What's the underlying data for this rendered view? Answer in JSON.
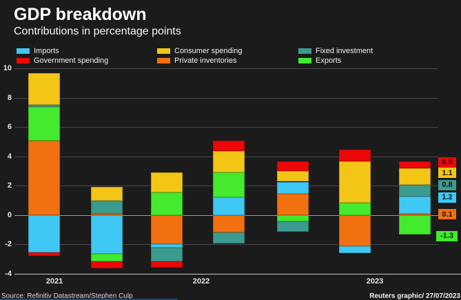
{
  "page": {
    "title": "GDP breakdown",
    "subtitle": "Contributions in percentage points",
    "source": "Source: Refinitiv Datastream/Stephen Culp",
    "credit": "Reuters graphic/ 27/07/2023"
  },
  "colors": {
    "background": "#1b1b1b",
    "imports": "#3fc8f4",
    "government": "#ed0707",
    "consumer": "#f3c515",
    "inventories": "#f1700f",
    "fixed": "#3b9b8e",
    "exports": "#43ea2d",
    "gridline": "#484848",
    "zero_line": "#9a9a9a",
    "bottom_line": "#c9c9c9"
  },
  "chart_data": {
    "type": "bar",
    "stacked": true,
    "title": "GDP breakdown",
    "subtitle": "Contributions in percentage points",
    "ylabel": "percentage points",
    "ylim": [
      -4,
      10
    ],
    "yticks": [
      10,
      8,
      6,
      4,
      2,
      0,
      -2,
      -4
    ],
    "grid": true,
    "legend_position": "top",
    "legend": [
      {
        "key": "imports",
        "label": "Imports"
      },
      {
        "key": "government",
        "label": "Government spending"
      },
      {
        "key": "consumer",
        "label": "Consumer spending"
      },
      {
        "key": "inventories",
        "label": "Private inventories"
      },
      {
        "key": "fixed",
        "label": "Fixed investment"
      },
      {
        "key": "exports",
        "label": "Exports"
      }
    ],
    "stack_order": [
      "inventories",
      "imports",
      "exports",
      "fixed",
      "consumer",
      "government"
    ],
    "bars": [
      {
        "series": {
          "inventories": 5.1,
          "imports": -2.5,
          "exports": 2.3,
          "fixed": 0.15,
          "consumer": 2.15,
          "government": -0.25
        }
      },
      {
        "series": {
          "inventories": 0.1,
          "imports": -2.6,
          "exports": -0.55,
          "fixed": 0.9,
          "consumer": 0.95,
          "government": -0.45
        }
      },
      {
        "series": {
          "inventories": -1.95,
          "imports": -0.25,
          "exports": 1.55,
          "fixed": -0.95,
          "consumer": 1.4,
          "government": -0.4
        }
      },
      {
        "series": {
          "inventories": -1.15,
          "imports": 1.25,
          "exports": 1.7,
          "fixed": -0.75,
          "consumer": 1.45,
          "government": 0.7
        }
      },
      {
        "series": {
          "inventories": 1.5,
          "imports": 0.8,
          "exports": -0.4,
          "fixed": -0.7,
          "consumer": 0.75,
          "government": 0.65
        }
      },
      {
        "series": {
          "inventories": -2.1,
          "imports": -0.45,
          "exports": 0.85,
          "fixed": 0,
          "consumer": 2.85,
          "government": 0.8
        }
      },
      {
        "series": {
          "inventories": 0.1,
          "imports": 1.2,
          "exports": -1.3,
          "fixed": 0.8,
          "consumer": 1.1,
          "government": 0.5
        }
      }
    ],
    "x_year_labels": [
      {
        "label": "2021",
        "x": 79
      },
      {
        "label": "2022",
        "x": 292
      },
      {
        "label": "2023",
        "x": 544
      }
    ],
    "right_labels": [
      {
        "text": "0.5",
        "key": "government",
        "value": 3.64
      },
      {
        "text": "1.1",
        "key": "consumer",
        "value": 2.9
      },
      {
        "text": "0.8",
        "key": "fixed",
        "value": 2.07
      },
      {
        "text": "1.2",
        "key": "imports",
        "value": 1.22
      },
      {
        "text": "0.1",
        "key": "inventories",
        "value": 0.08
      },
      {
        "text": "-1.3",
        "key": "exports",
        "value": -1.41
      }
    ]
  }
}
